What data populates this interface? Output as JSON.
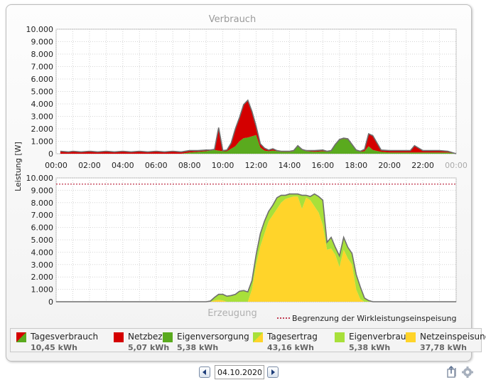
{
  "title_top": "Verbrauch",
  "title_bottom": "Erzeugung",
  "ylabel": "Leistung [W]",
  "limit_label": "Begrenzung der Wirkleistungseinspeisung",
  "date": "04.10.2020",
  "colors": {
    "netzbezug": "#d40000",
    "eigenversorgung": "#5aaa1e",
    "eigenverbrauch": "#a8e03a",
    "netzeinspeisung": "#ffd42a",
    "outline": "#6f6f6f",
    "limit": "#b0001e"
  },
  "icons": [
    "nav-left-icon",
    "nav-right-icon",
    "export-icon",
    "settings-icon"
  ],
  "legend": [
    {
      "label": "Tagesverbrauch",
      "value": "10,45 kWh",
      "swatch": "split-red-green"
    },
    {
      "label": "Netzbezug",
      "value": "5,07 kWh",
      "swatch": "#d40000"
    },
    {
      "label": "Eigenversorgung",
      "value": "5,38 kWh",
      "swatch": "#5aaa1e"
    },
    {
      "label": "Tagesertrag",
      "value": "43,16 kWh",
      "swatch": "split-green-yellow"
    },
    {
      "label": "Eigenverbrauch",
      "value": "5,38 kWh",
      "swatch": "#a8e03a"
    },
    {
      "label": "Netzeinspeisung",
      "value": "37,78 kWh",
      "swatch": "#ffd42a"
    }
  ],
  "chart_data": [
    {
      "type": "area",
      "title": "Verbrauch",
      "ylabel": "Leistung [W]",
      "ylim": [
        0,
        10000
      ],
      "yticks": [
        "0",
        "1.000",
        "2.000",
        "3.000",
        "4.000",
        "5.000",
        "6.000",
        "7.000",
        "8.000",
        "9.000",
        "10.000"
      ],
      "xlim": [
        0,
        24
      ],
      "xticks": [
        "00:00",
        "02:00",
        "04:00",
        "06:00",
        "08:00",
        "10:00",
        "12:00",
        "14:00",
        "16:00",
        "18:00",
        "20:00",
        "22:00",
        "00:00"
      ],
      "grid": true,
      "stacked": true,
      "x": [
        0.25,
        0.75,
        1,
        1.5,
        2,
        2.5,
        3,
        3.5,
        4,
        4.5,
        5,
        5.5,
        6,
        6.5,
        7,
        7.5,
        8,
        8.5,
        9,
        9.25,
        9.5,
        9.75,
        10,
        10.25,
        10.5,
        10.75,
        11,
        11.25,
        11.5,
        11.75,
        12,
        12.25,
        12.5,
        12.75,
        13,
        13.25,
        13.5,
        14,
        14.25,
        14.5,
        14.75,
        15,
        15.5,
        16,
        16.25,
        16.5,
        16.75,
        17,
        17.25,
        17.5,
        17.75,
        18,
        18.25,
        18.5,
        18.75,
        19,
        19.5,
        20,
        20.5,
        21,
        21.25,
        21.5,
        22,
        22.5,
        23,
        23.5,
        24
      ],
      "series": [
        {
          "name": "Eigenversorgung",
          "values": [
            0,
            0,
            0,
            0,
            0,
            0,
            0,
            0,
            0,
            0,
            0,
            0,
            0,
            0,
            0,
            0,
            100,
            150,
            200,
            250,
            300,
            250,
            200,
            200,
            400,
            600,
            1000,
            1250,
            1300,
            1400,
            1500,
            500,
            250,
            200,
            250,
            200,
            150,
            150,
            200,
            600,
            300,
            200,
            150,
            200,
            150,
            200,
            700,
            1100,
            1200,
            1150,
            700,
            250,
            150,
            200,
            600,
            300,
            150,
            100,
            100,
            100,
            100,
            100,
            100,
            100,
            100,
            100,
            0
          ]
        },
        {
          "name": "Netzbezug",
          "values": [
            200,
            150,
            200,
            150,
            200,
            150,
            200,
            150,
            200,
            150,
            200,
            150,
            200,
            150,
            200,
            150,
            150,
            100,
            100,
            50,
            50,
            1850,
            50,
            100,
            450,
            1400,
            1900,
            2700,
            3000,
            2000,
            700,
            300,
            200,
            100,
            150,
            50,
            50,
            50,
            50,
            50,
            50,
            50,
            100,
            100,
            50,
            50,
            50,
            50,
            50,
            50,
            50,
            50,
            50,
            150,
            1000,
            1150,
            150,
            150,
            150,
            150,
            150,
            550,
            150,
            150,
            150,
            100,
            0
          ]
        }
      ]
    },
    {
      "type": "area",
      "title": "Erzeugung",
      "ylabel": "Leistung [W]",
      "ylim": [
        0,
        10000
      ],
      "yticks": [
        "0",
        "1.000",
        "2.000",
        "3.000",
        "4.000",
        "5.000",
        "6.000",
        "7.000",
        "8.000",
        "9.000",
        "10.000"
      ],
      "xlim": [
        0,
        24
      ],
      "grid": true,
      "stacked": true,
      "limit_line": 9500,
      "x": [
        0,
        7.75,
        8,
        8.25,
        8.5,
        8.75,
        9,
        9.25,
        9.5,
        9.75,
        10,
        10.25,
        10.5,
        10.75,
        11,
        11.25,
        11.5,
        11.75,
        12,
        12.25,
        12.5,
        12.75,
        13,
        13.25,
        13.5,
        13.75,
        14,
        14.25,
        14.5,
        14.75,
        15,
        15.25,
        15.5,
        15.75,
        16,
        16.25,
        16.5,
        16.75,
        17,
        17.25,
        17.5,
        17.75,
        18,
        18.25,
        18.5,
        18.75,
        19,
        24
      ],
      "series": [
        {
          "name": "Netzeinspeisung",
          "values": [
            0,
            0,
            0,
            0,
            0,
            0,
            0,
            0,
            100,
            150,
            100,
            0,
            0,
            0,
            0,
            0,
            0,
            1000,
            3000,
            4500,
            5500,
            6500,
            7000,
            7500,
            8000,
            8300,
            8400,
            8500,
            8500,
            7500,
            8400,
            8200,
            7700,
            7200,
            6200,
            4200,
            4300,
            3800,
            2800,
            4200,
            3500,
            3000,
            1000,
            200,
            0,
            0,
            0,
            0
          ]
        },
        {
          "name": "Eigenverbrauch",
          "values": [
            0,
            0,
            0,
            0,
            0,
            0,
            0,
            50,
            250,
            450,
            500,
            450,
            500,
            600,
            850,
            900,
            800,
            700,
            800,
            1000,
            1000,
            800,
            800,
            900,
            600,
            300,
            300,
            200,
            200,
            1100,
            200,
            300,
            1000,
            1300,
            2000,
            600,
            900,
            600,
            900,
            1000,
            900,
            900,
            1200,
            1000,
            300,
            100,
            0,
            0
          ]
        }
      ]
    }
  ]
}
